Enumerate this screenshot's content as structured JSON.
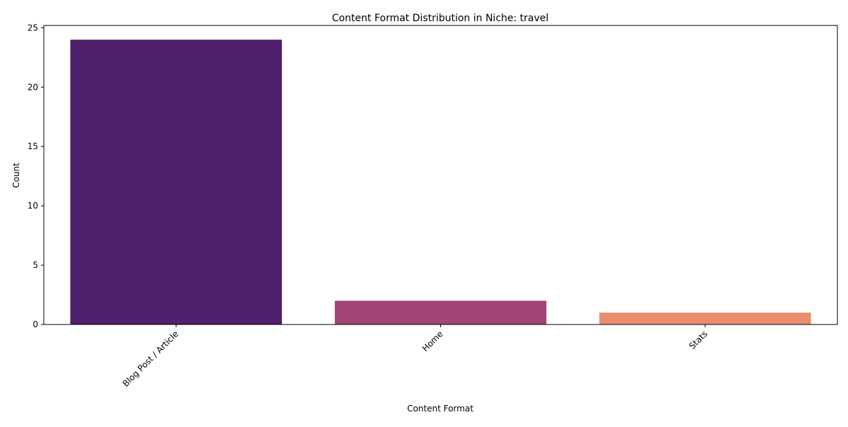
{
  "chart_data": {
    "type": "bar",
    "title": "Content Format Distribution in Niche: travel",
    "xlabel": "Content Format",
    "ylabel": "Count",
    "categories": [
      "Blog Post / Article",
      "Home",
      "Stats"
    ],
    "values": [
      24,
      2,
      1
    ],
    "colors": [
      "#4f1f6b",
      "#a24475",
      "#e88d6e"
    ],
    "ylim": [
      0,
      25.2
    ],
    "yticks": [
      0,
      5,
      10,
      15,
      20,
      25
    ],
    "grid": false,
    "legend": "none",
    "xtick_rotation": -45
  }
}
